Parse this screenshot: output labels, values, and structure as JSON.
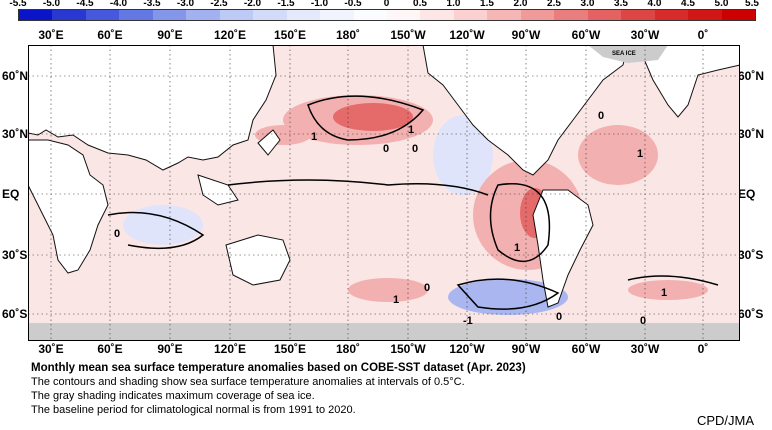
{
  "colorbar": {
    "ticks": [
      "-5.5",
      "-5.0",
      "-4.5",
      "-4.0",
      "-3.5",
      "-3.0",
      "-2.5",
      "-2.0",
      "-1.5",
      "-1.0",
      "-0.5",
      "0",
      "0.5",
      "1.0",
      "1.5",
      "2.0",
      "2.5",
      "3.0",
      "3.5",
      "4.0",
      "4.5",
      "5.0",
      "5.5"
    ],
    "colors": [
      "#0a14c8",
      "#2a38d2",
      "#4658dc",
      "#6478e4",
      "#8496ea",
      "#a2b2f0",
      "#bccaf5",
      "#d2dcf8",
      "#e4eafb",
      "#f1f4fd",
      "#fbfcff",
      "#fff7f7",
      "#fde6e6",
      "#fad0d0",
      "#f6b6b6",
      "#f09a9a",
      "#ea7e7e",
      "#e46262",
      "#de4646",
      "#d82c2c",
      "#d21616",
      "#cc0000"
    ]
  },
  "lon_labels": [
    "30˚E",
    "60˚E",
    "90˚E",
    "120˚E",
    "150˚E",
    "180˚",
    "150˚W",
    "120˚W",
    "90˚W",
    "60˚W",
    "30˚W",
    "0˚"
  ],
  "lat_labels": [
    "60˚N",
    "30˚N",
    "EQ",
    "30˚S",
    "60˚S"
  ],
  "map": {
    "sea_ice_label": "SEA ICE",
    "contour_labels": [
      "1",
      "0",
      "0",
      "1",
      "0",
      "1",
      "0",
      "1",
      "1",
      "1",
      "0",
      "-1",
      "0",
      "0"
    ],
    "colors": {
      "ocean_warm": "#fbe0e0",
      "warm": "#f3b0b0",
      "hot": "#e56a6a",
      "cool": "#dfe4fb",
      "cold": "#a9b6ef",
      "land": "#ffffff",
      "ice": "#cccccc"
    }
  },
  "caption": {
    "title": "Monthly mean sea surface temperature anomalies based on COBE-SST dataset (Apr. 2023)",
    "lines": [
      "The contours and shading show sea surface temperature anomalies at intervals of 0.5°C.",
      "The gray shading indicates maximum coverage of sea ice.",
      "The baseline period for climatological normal is from 1991 to 2020."
    ]
  },
  "credit": "CPD/JMA"
}
